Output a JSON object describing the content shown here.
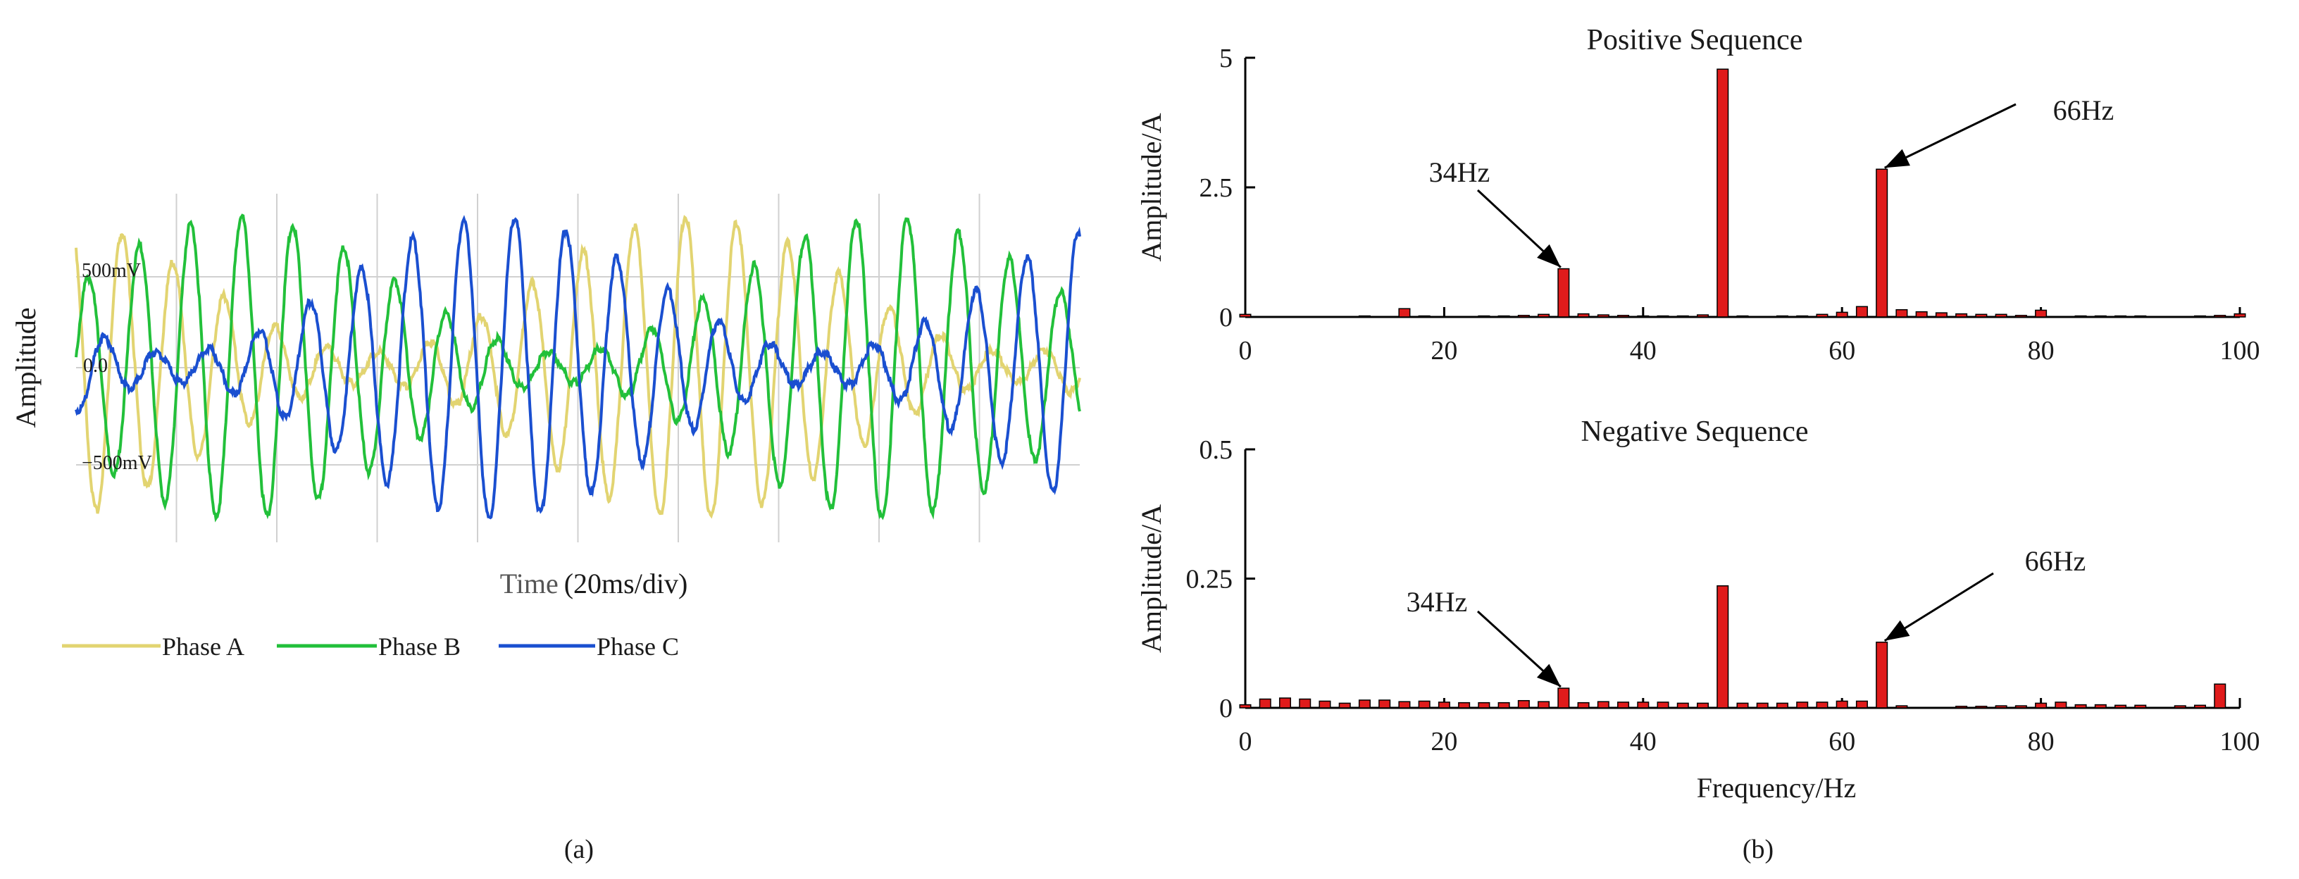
{
  "panel_a": {
    "caption": "(a)",
    "ylabel": "Amplitude",
    "xlabel_time": "Time",
    "xlabel_scale": "(20ms/div)",
    "y_ticks": [
      "500mV",
      "0.0",
      "−500mV"
    ],
    "legend": [
      "Phase A",
      "Phase B",
      "Phase C"
    ],
    "colors": {
      "A": "#e2d471",
      "B": "#22c03a",
      "C": "#1a4fd0"
    }
  },
  "panel_b": {
    "caption": "(b)",
    "xlabel": "Frequency/Hz",
    "bar_color": "#e01b1b"
  },
  "chart_data": [
    {
      "type": "line",
      "ylabel": "Amplitude",
      "xlabel": "Time (20ms/div)",
      "y_tick_labels": [
        "500mV",
        "0.0",
        "−500mV"
      ],
      "series": [
        {
          "name": "Phase A",
          "color": "#e2d471"
        },
        {
          "name": "Phase B",
          "color": "#22c03a"
        },
        {
          "name": "Phase C",
          "color": "#1a4fd0"
        }
      ],
      "grid": true,
      "legend_placement": "bottom"
    },
    {
      "type": "bar",
      "title": "Positive Sequence",
      "ylabel": "Amplitude/A",
      "xlabel": "",
      "xlim": [
        0,
        100
      ],
      "ylim": [
        0,
        5
      ],
      "x_ticks": [
        0,
        20,
        40,
        60,
        80,
        100
      ],
      "y_ticks": [
        0,
        2.5,
        5
      ],
      "y_tick_labels": [
        "0",
        "2.5",
        "5"
      ],
      "x": [
        0,
        12,
        14,
        16,
        18,
        24,
        26,
        28,
        30,
        32,
        34,
        36,
        38,
        40,
        42,
        44,
        46,
        48,
        50,
        54,
        56,
        58,
        60,
        62,
        64,
        66,
        68,
        70,
        72,
        74,
        76,
        78,
        80,
        84,
        86,
        88,
        90,
        96,
        98,
        100
      ],
      "values": [
        0.05,
        0.02,
        0.01,
        0.16,
        0.02,
        0.02,
        0.02,
        0.03,
        0.05,
        0.93,
        0.06,
        0.04,
        0.03,
        0.02,
        0.02,
        0.02,
        0.04,
        4.78,
        0.02,
        0.02,
        0.02,
        0.05,
        0.09,
        0.2,
        2.85,
        0.14,
        0.1,
        0.08,
        0.06,
        0.05,
        0.05,
        0.03,
        0.13,
        0.02,
        0.02,
        0.02,
        0.02,
        0.02,
        0.03,
        0.06
      ],
      "annotations": [
        {
          "text": "34Hz",
          "x": 32
        },
        {
          "text": "66Hz",
          "x": 64
        }
      ]
    },
    {
      "type": "bar",
      "title": "Negative Sequence",
      "ylabel": "Amplitude/A",
      "xlabel": "Frequency/Hz",
      "xlim": [
        0,
        100
      ],
      "ylim": [
        0,
        0.5
      ],
      "x_ticks": [
        0,
        20,
        40,
        60,
        80,
        100
      ],
      "y_ticks": [
        0,
        0.25,
        0.5
      ],
      "y_tick_labels": [
        "0",
        "0.25",
        "0.5"
      ],
      "x": [
        0,
        2,
        4,
        6,
        8,
        10,
        12,
        14,
        16,
        18,
        20,
        22,
        24,
        26,
        28,
        30,
        32,
        34,
        36,
        38,
        40,
        42,
        44,
        46,
        48,
        50,
        52,
        54,
        56,
        58,
        60,
        62,
        64,
        66,
        72,
        74,
        76,
        78,
        80,
        82,
        84,
        86,
        88,
        90,
        94,
        96,
        98
      ],
      "values": [
        0.006,
        0.017,
        0.019,
        0.017,
        0.013,
        0.009,
        0.015,
        0.015,
        0.012,
        0.013,
        0.011,
        0.01,
        0.01,
        0.01,
        0.014,
        0.012,
        0.038,
        0.01,
        0.012,
        0.011,
        0.011,
        0.011,
        0.009,
        0.009,
        0.236,
        0.009,
        0.009,
        0.009,
        0.011,
        0.011,
        0.013,
        0.013,
        0.127,
        0.004,
        0.003,
        0.003,
        0.004,
        0.004,
        0.009,
        0.011,
        0.006,
        0.006,
        0.005,
        0.005,
        0.004,
        0.005,
        0.046
      ],
      "annotations": [
        {
          "text": "34Hz",
          "x": 32
        },
        {
          "text": "66Hz",
          "x": 64
        }
      ]
    }
  ]
}
